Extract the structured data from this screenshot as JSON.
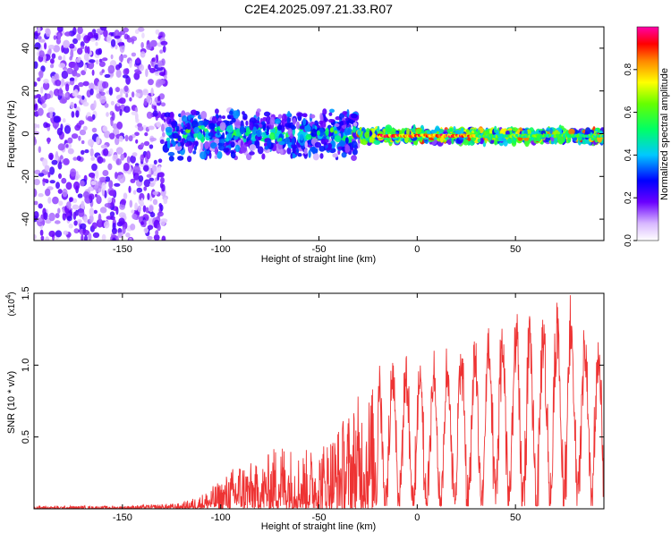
{
  "title": "C2E4.2025.097.21.33.R07",
  "colors": {
    "signal": "#ff2020",
    "noise_dots": "#7a1de8",
    "snr_line": "#ee3333"
  },
  "chart_data": [
    {
      "type": "heatmap",
      "title": "C2E4.2025.097.21.33.R07",
      "xlabel": "Height of straight line (km)",
      "ylabel": "Frequency (Hz)",
      "xlim": [
        -195,
        95
      ],
      "ylim": [
        -50,
        50
      ],
      "x_ticks": [
        -150,
        -100,
        -50,
        0,
        50
      ],
      "y_ticks": [
        -40,
        -20,
        0,
        20,
        40
      ],
      "colorbar": {
        "label": "Normalized spectral amplitude",
        "range": [
          0.0,
          1.0
        ],
        "ticks": [
          "0.0",
          "0.2",
          "0.4",
          "0.6",
          "0.8"
        ],
        "tick_values": [
          0.0,
          0.2,
          0.4,
          0.6,
          0.8
        ]
      },
      "regions": [
        {
          "x": [
            -195,
            -128
          ],
          "freq_spread": 50,
          "amplitude": 0.15,
          "note_freq_center": 0
        },
        {
          "x": [
            -128,
            -30
          ],
          "freq_spread": 10,
          "amplitude": 0.25,
          "note_freq_center": 0
        },
        {
          "x": [
            -30,
            95
          ],
          "freq_spread": 3,
          "amplitude": 0.45,
          "note_freq_center": -1
        }
      ],
      "peak_line": {
        "x": [
          -20,
          30
        ],
        "freq": -1,
        "amplitude": 0.95
      }
    },
    {
      "type": "line",
      "xlabel": "Height of straight line (km)",
      "ylabel": "SNR (10 * v/v)",
      "yscale_label": "(x10",
      "yscale_exp": "4",
      "yscale_close": ")",
      "xlim": [
        -195,
        95
      ],
      "ylim": [
        0,
        1.5
      ],
      "x_ticks": [
        -150,
        -100,
        -50,
        0,
        50
      ],
      "y_ticks": [
        "0.5",
        "1.0",
        "1.5"
      ],
      "y_tick_values": [
        0.5,
        1.0,
        1.5
      ],
      "envelope": {
        "x": [
          -195,
          -150,
          -120,
          -110,
          -100,
          -90,
          -80,
          -70,
          -60,
          -50,
          -40,
          -30,
          -20,
          -10,
          0,
          10,
          20,
          30,
          40,
          50,
          60,
          70,
          75,
          80,
          90,
          95
        ],
        "y": [
          0.02,
          0.02,
          0.04,
          0.1,
          0.2,
          0.35,
          0.3,
          0.5,
          0.4,
          0.45,
          0.6,
          0.8,
          0.9,
          1.0,
          0.95,
          1.0,
          1.05,
          1.1,
          1.2,
          1.25,
          1.2,
          1.35,
          1.45,
          1.25,
          1.1,
          1.0
        ]
      }
    }
  ]
}
